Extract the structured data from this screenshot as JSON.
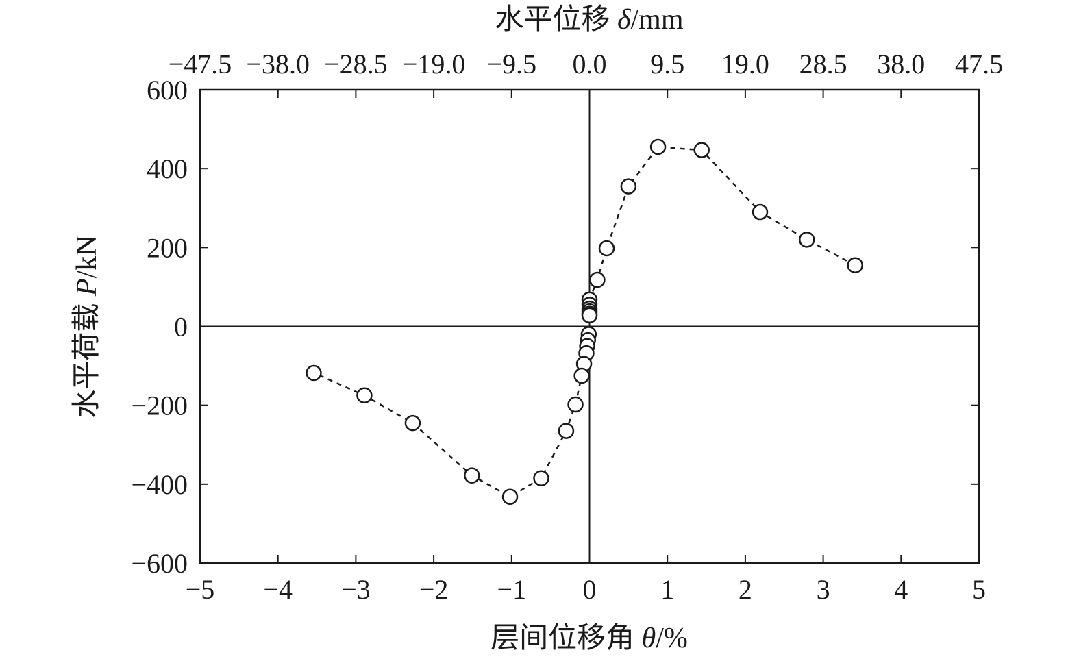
{
  "chart_data": {
    "type": "scatter",
    "title": "",
    "xlabel": {
      "text": "层间位移角 ",
      "symbol": "θ",
      "unit": "/%"
    },
    "x2label": {
      "text": "水平位移 ",
      "symbol": "δ",
      "unit": "/mm"
    },
    "ylabel": {
      "text": "水平荷载 ",
      "symbol": "P",
      "unit": "/kN"
    },
    "xlim": [
      -5,
      5
    ],
    "ylim": [
      -600,
      600
    ],
    "x_ticks": [
      "−5",
      "−4",
      "−3",
      "−2",
      "−1",
      "0",
      "1",
      "2",
      "3",
      "4",
      "5"
    ],
    "x2_ticks": [
      "−47.5",
      "−38.0",
      "−28.5",
      "−19.0",
      "−9.5",
      "0.0",
      "9.5",
      "19.0",
      "28.5",
      "38.0",
      "47.5"
    ],
    "y_ticks": [
      "600",
      "400",
      "200",
      "0",
      "−200",
      "−400",
      "−600"
    ],
    "grid": false,
    "zero_lines": true,
    "line_style": "dashed",
    "marker": "open-circle",
    "color": "#1a1a1a",
    "series": [
      {
        "x": [
          3.41,
          2.79,
          2.19,
          1.44,
          0.88,
          0.5,
          0.22,
          0.1,
          0.0,
          0.0,
          0.0,
          0.0,
          0.0,
          0.0
        ],
        "y": [
          155,
          220,
          290,
          447,
          455,
          355,
          198,
          118,
          68,
          55,
          45,
          38,
          32,
          28
        ]
      },
      {
        "x": [
          -0.01,
          -0.02,
          -0.03,
          -0.04,
          -0.07,
          -0.1,
          -0.18,
          -0.3,
          -0.62,
          -1.02,
          -1.51,
          -2.27,
          -2.89,
          -3.54
        ],
        "y": [
          -20,
          -35,
          -50,
          -68,
          -95,
          -125,
          -198,
          -265,
          -385,
          -432,
          -378,
          -245,
          -175,
          -118
        ]
      }
    ]
  }
}
